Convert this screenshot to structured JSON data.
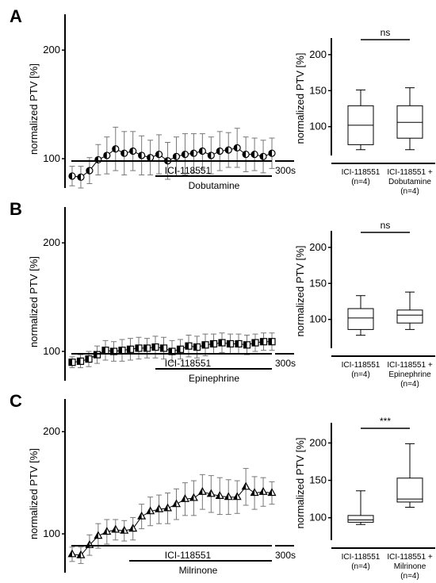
{
  "chart_data": [
    {
      "panel": "A",
      "type": "line",
      "ylabel": "normalized PTV [%]",
      "yticks": [
        100,
        200
      ],
      "ylim": [
        73,
        233
      ],
      "marker": "half-filled-circle",
      "values": [
        84,
        83,
        89,
        99,
        103,
        109,
        105,
        107,
        103,
        101,
        104,
        98,
        102,
        104,
        105,
        107,
        103,
        107,
        108,
        110,
        104,
        104,
        102,
        105
      ],
      "errors": [
        9,
        10,
        12,
        14,
        17,
        20,
        20,
        18,
        18,
        16,
        18,
        17,
        18,
        19,
        18,
        16,
        17,
        18,
        16,
        18,
        16,
        15,
        15,
        14
      ],
      "scale_bar": "300s",
      "treatments": [
        {
          "label": "ICI-118551"
        },
        {
          "label": "Dobutamine"
        }
      ],
      "box": {
        "ylabel": "normalized PTV [%]",
        "yticks": [
          100,
          150,
          200
        ],
        "ylim": [
          60,
          223
        ],
        "significance": "ns",
        "groups": [
          {
            "label": "ICI-118551",
            "n": "(n=4)",
            "min": 68,
            "q1": 75,
            "median": 102,
            "q3": 129,
            "max": 151
          },
          {
            "label": "ICI-118551 +",
            "label2": "Dobutamine",
            "n": "(n=4)",
            "min": 68,
            "q1": 84,
            "median": 106,
            "q3": 129,
            "max": 154
          }
        ]
      }
    },
    {
      "panel": "B",
      "type": "line",
      "ylabel": "normalized PTV [%]",
      "yticks": [
        100,
        200
      ],
      "ylim": [
        73,
        233
      ],
      "marker": "half-filled-square",
      "values": [
        90,
        91,
        93,
        97,
        101,
        100,
        101,
        102,
        103,
        103,
        104,
        103,
        100,
        102,
        105,
        104,
        106,
        107,
        108,
        107,
        107,
        106,
        108,
        109,
        109
      ],
      "errors": [
        5,
        6,
        7,
        8,
        9,
        9,
        10,
        10,
        10,
        9,
        10,
        10,
        10,
        9,
        10,
        10,
        10,
        9,
        9,
        9,
        9,
        9,
        8,
        8,
        8
      ],
      "scale_bar": "300s",
      "treatments": [
        {
          "label": "ICI-118551"
        },
        {
          "label": "Epinephrine"
        }
      ],
      "box": {
        "ylabel": "normalized PTV [%]",
        "yticks": [
          100,
          150,
          200
        ],
        "ylim": [
          60,
          223
        ],
        "significance": "ns",
        "groups": [
          {
            "label": "ICI-118551",
            "n": "(n=4)",
            "min": 78,
            "q1": 86,
            "median": 102,
            "q3": 115,
            "max": 133
          },
          {
            "label": "ICI-118551 +",
            "label2": "Epinephrine",
            "n": "(n=4)",
            "min": 86,
            "q1": 95,
            "median": 106,
            "q3": 113,
            "max": 138
          }
        ]
      }
    },
    {
      "panel": "C",
      "type": "line",
      "ylabel": "normalized PTV [%]",
      "yticks": [
        100,
        200
      ],
      "ylim": [
        62,
        232
      ],
      "marker": "half-filled-triangle",
      "values": [
        80,
        79,
        89,
        98,
        102,
        104,
        103,
        105,
        117,
        122,
        124,
        125,
        129,
        134,
        135,
        141,
        139,
        137,
        136,
        136,
        146,
        140,
        141,
        140
      ],
      "errors": [
        7,
        8,
        10,
        12,
        12,
        10,
        10,
        11,
        12,
        14,
        14,
        15,
        15,
        16,
        17,
        17,
        18,
        18,
        17,
        16,
        18,
        16,
        14,
        11
      ],
      "scale_bar": "300s",
      "treatments": [
        {
          "label": "ICI-118551"
        },
        {
          "label": "Milrinone"
        }
      ],
      "box": {
        "ylabel": "normalized PTV [%]",
        "yticks": [
          100,
          150,
          200
        ],
        "ylim": [
          70,
          227
        ],
        "significance": "***",
        "groups": [
          {
            "label": "ICI-118551",
            "n": "(n=4)",
            "min": 91,
            "q1": 94,
            "median": 97,
            "q3": 103,
            "max": 136
          },
          {
            "label": "ICI-118551 +",
            "label2": "Milrinone",
            "n": "(n=4)",
            "min": 114,
            "q1": 121,
            "median": 125,
            "q3": 153,
            "max": 199
          }
        ]
      }
    }
  ]
}
